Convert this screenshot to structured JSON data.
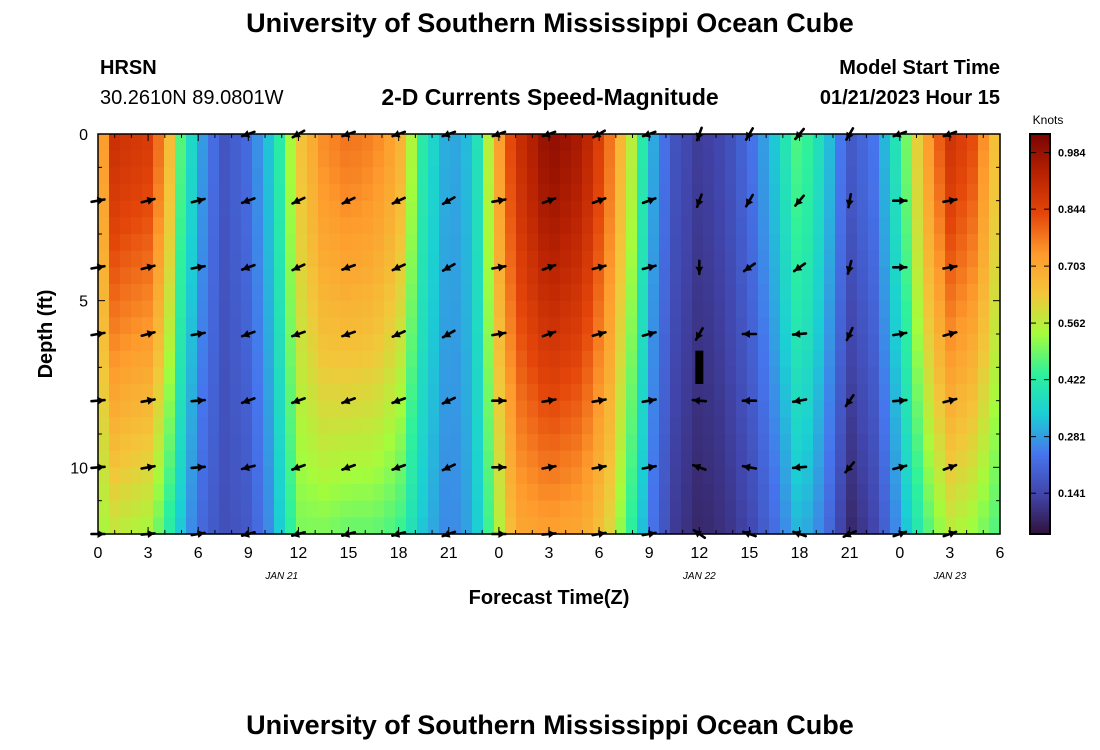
{
  "page": {
    "title": "University of Southern Mississippi Ocean Cube",
    "station": "HRSN",
    "coords": "30.2610N  89.0801W",
    "model_start_label": "Model Start Time",
    "model_start_value": "01/21/2023 Hour 15",
    "bottom_title": "University of Southern Mississippi Ocean Cube"
  },
  "colors": {
    "arrow": "#000000",
    "marker": "#000000"
  },
  "chart_data": {
    "type": "heatmap",
    "title": "2-D Currents Speed-Magnitude",
    "xlabel": "Forecast Time(Z)",
    "ylabel": "Depth (ft)",
    "xlim": [
      0,
      54
    ],
    "ylim": [
      0,
      12
    ],
    "x_ticks": [
      {
        "value": 0,
        "label": "0"
      },
      {
        "value": 3,
        "label": "3"
      },
      {
        "value": 6,
        "label": "6"
      },
      {
        "value": 9,
        "label": "9"
      },
      {
        "value": 12,
        "label": "12"
      },
      {
        "value": 15,
        "label": "15"
      },
      {
        "value": 18,
        "label": "18"
      },
      {
        "value": 21,
        "label": "21"
      },
      {
        "value": 24,
        "label": "0"
      },
      {
        "value": 27,
        "label": "3"
      },
      {
        "value": 30,
        "label": "6"
      },
      {
        "value": 33,
        "label": "9"
      },
      {
        "value": 36,
        "label": "12"
      },
      {
        "value": 39,
        "label": "15"
      },
      {
        "value": 42,
        "label": "18"
      },
      {
        "value": 45,
        "label": "21"
      },
      {
        "value": 48,
        "label": "0"
      },
      {
        "value": 51,
        "label": "3"
      },
      {
        "value": 54,
        "label": "6"
      }
    ],
    "date_labels": [
      {
        "value": 11,
        "label": "JAN 21"
      },
      {
        "value": 36,
        "label": "JAN 22"
      },
      {
        "value": 51,
        "label": "JAN 23"
      }
    ],
    "y_ticks": [
      {
        "value": 0,
        "label": "0"
      },
      {
        "value": 5,
        "label": "5"
      },
      {
        "value": 10,
        "label": "10"
      }
    ],
    "colorbar": {
      "label": "Knots",
      "min": 0.04,
      "max": 1.03,
      "ticks": [
        "0.984",
        "0.844",
        "0.703",
        "0.562",
        "0.422",
        "0.281",
        "0.141"
      ],
      "tick_values": [
        0.984,
        0.844,
        0.703,
        0.562,
        0.422,
        0.281,
        0.141
      ]
    },
    "speed_profile_hours": [
      0,
      0.6,
      1.5,
      3,
      4,
      5,
      6,
      7.5,
      9,
      10.5,
      12,
      13.5,
      15,
      16.5,
      18,
      19.5,
      21,
      22.5,
      24,
      25,
      27,
      29,
      30.5,
      32,
      33,
      34.5,
      36,
      37.5,
      39,
      40.5,
      42,
      43.5,
      45,
      46.5,
      48,
      49.5,
      51,
      52.5,
      54
    ],
    "speed_profile_surface": [
      0.52,
      0.9,
      0.88,
      0.86,
      0.74,
      0.45,
      0.3,
      0.17,
      0.22,
      0.35,
      0.63,
      0.75,
      0.78,
      0.76,
      0.7,
      0.4,
      0.28,
      0.33,
      0.72,
      0.88,
      1.0,
      0.95,
      0.8,
      0.55,
      0.32,
      0.17,
      0.12,
      0.15,
      0.22,
      0.33,
      0.48,
      0.35,
      0.18,
      0.24,
      0.42,
      0.7,
      0.88,
      0.82,
      0.6
    ],
    "speed_profile_bottom": [
      0.5,
      0.58,
      0.56,
      0.54,
      0.45,
      0.32,
      0.22,
      0.16,
      0.18,
      0.28,
      0.5,
      0.5,
      0.48,
      0.48,
      0.45,
      0.32,
      0.25,
      0.3,
      0.55,
      0.7,
      0.72,
      0.7,
      0.62,
      0.42,
      0.25,
      0.12,
      0.08,
      0.1,
      0.14,
      0.22,
      0.32,
      0.24,
      0.08,
      0.14,
      0.28,
      0.45,
      0.56,
      0.52,
      0.45
    ],
    "vector_rows_depth": [
      0,
      2,
      4,
      6,
      8,
      10,
      12
    ],
    "vector_hours": [
      0,
      3,
      6,
      9,
      12,
      15,
      18,
      21,
      24,
      27,
      30,
      33,
      36,
      39,
      42,
      45,
      48,
      51
    ],
    "vector_directions_deg": [
      [
        null,
        null,
        null,
        200,
        210,
        200,
        200,
        200,
        200,
        200,
        210,
        200,
        250,
        240,
        230,
        240,
        200,
        200
      ],
      [
        10,
        15,
        15,
        200,
        205,
        205,
        205,
        210,
        10,
        20,
        20,
        20,
        250,
        240,
        230,
        260,
        0,
        10
      ],
      [
        10,
        15,
        10,
        200,
        205,
        200,
        205,
        210,
        10,
        20,
        15,
        15,
        270,
        215,
        215,
        255,
        0,
        10
      ],
      [
        10,
        15,
        10,
        200,
        200,
        200,
        205,
        210,
        10,
        20,
        15,
        15,
        240,
        180,
        185,
        245,
        10,
        15
      ],
      [
        5,
        10,
        5,
        200,
        200,
        200,
        200,
        205,
        0,
        10,
        10,
        10,
        175,
        180,
        190,
        235,
        5,
        15
      ],
      [
        5,
        10,
        5,
        195,
        200,
        200,
        200,
        205,
        0,
        10,
        10,
        10,
        160,
        170,
        185,
        230,
        15,
        20
      ],
      [
        0,
        5,
        10,
        195,
        195,
        195,
        195,
        200,
        0,
        5,
        10,
        10,
        145,
        160,
        160,
        205,
        20,
        20
      ]
    ],
    "markers": [
      {
        "x": 36,
        "depth_top": 6.5,
        "depth_bottom": 7.5
      }
    ]
  }
}
